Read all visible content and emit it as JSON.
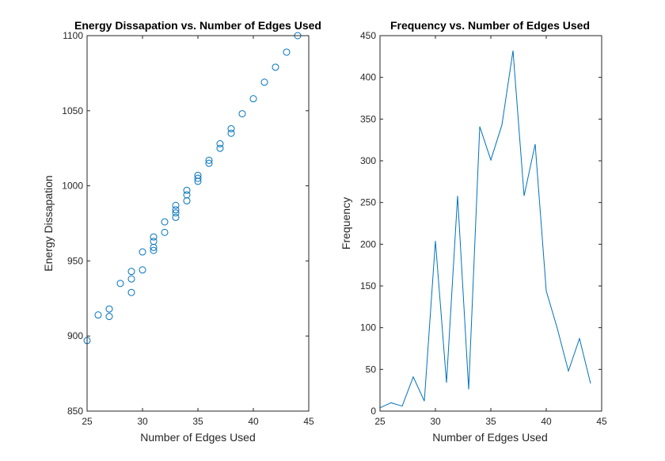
{
  "chart_data": [
    {
      "type": "scatter",
      "title": "Energy Dissapation vs. Number of Edges Used",
      "xlabel": "Number of Edges Used",
      "ylabel": "Energy Dissapation",
      "xlim": [
        25,
        45
      ],
      "ylim": [
        850,
        1100
      ],
      "xticks": [
        25,
        30,
        35,
        40,
        45
      ],
      "yticks": [
        850,
        900,
        950,
        1000,
        1050,
        1100
      ],
      "marker": "circle",
      "color": "#0072BD",
      "points": [
        [
          25,
          897
        ],
        [
          26,
          914
        ],
        [
          27,
          913
        ],
        [
          27,
          918
        ],
        [
          28,
          935
        ],
        [
          29,
          929
        ],
        [
          29,
          938
        ],
        [
          29,
          943
        ],
        [
          30,
          944
        ],
        [
          30,
          956
        ],
        [
          31,
          957
        ],
        [
          31,
          959
        ],
        [
          31,
          963
        ],
        [
          31,
          966
        ],
        [
          32,
          969
        ],
        [
          32,
          976
        ],
        [
          33,
          979
        ],
        [
          33,
          982
        ],
        [
          33,
          984
        ],
        [
          33,
          987
        ],
        [
          34,
          990
        ],
        [
          34,
          994
        ],
        [
          34,
          997
        ],
        [
          35,
          1003
        ],
        [
          35,
          1005
        ],
        [
          35,
          1007
        ],
        [
          36,
          1015
        ],
        [
          36,
          1017
        ],
        [
          37,
          1025
        ],
        [
          37,
          1028
        ],
        [
          38,
          1035
        ],
        [
          38,
          1038
        ],
        [
          39,
          1048
        ],
        [
          40,
          1058
        ],
        [
          41,
          1069
        ],
        [
          42,
          1079
        ],
        [
          43,
          1089
        ],
        [
          44,
          1100
        ]
      ]
    },
    {
      "type": "line",
      "title": "Frequency vs. Number of Edges Used",
      "xlabel": "Number of Edges Used",
      "ylabel": "Frequency",
      "xlim": [
        25,
        45
      ],
      "ylim": [
        0,
        450
      ],
      "xticks": [
        25,
        30,
        35,
        40,
        45
      ],
      "yticks": [
        0,
        50,
        100,
        150,
        200,
        250,
        300,
        350,
        400,
        450
      ],
      "color": "#0072BD",
      "x": [
        25,
        26,
        27,
        28,
        29,
        30,
        31,
        32,
        33,
        34,
        35,
        36,
        37,
        38,
        39,
        40,
        41,
        42,
        43,
        44
      ],
      "y": [
        4,
        10,
        6,
        41,
        12,
        204,
        34,
        258,
        26,
        341,
        301,
        343,
        432,
        258,
        320,
        144,
        99,
        48,
        87,
        33
      ]
    }
  ]
}
